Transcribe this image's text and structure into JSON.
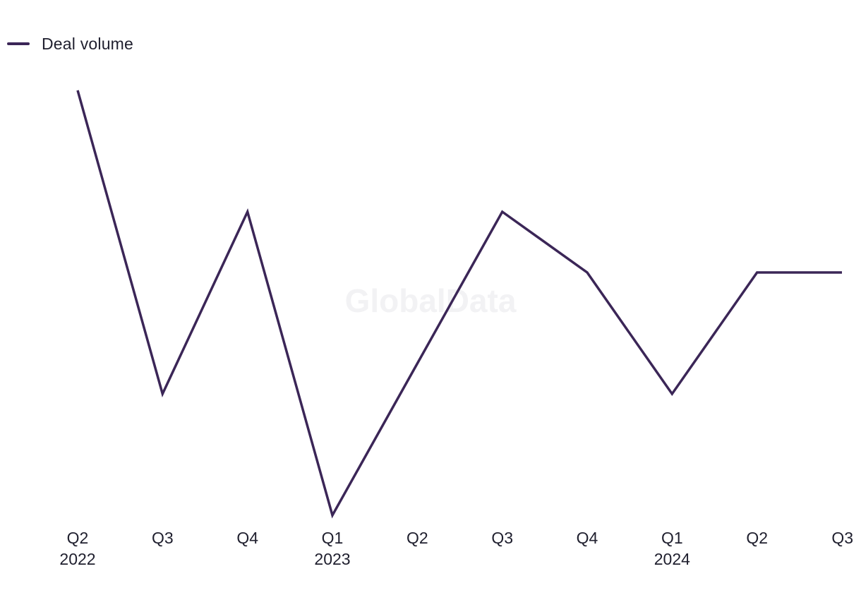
{
  "legend": {
    "items": [
      {
        "label": "Deal volume",
        "color": "#3b2657"
      }
    ]
  },
  "watermark": {
    "text": "GlobalData"
  },
  "chart_data": {
    "type": "line",
    "title": "",
    "xlabel": "",
    "ylabel": "",
    "grid": false,
    "y_axis_visible": false,
    "legend_position": "top-left",
    "categories": [
      [
        "Q2",
        "2022"
      ],
      [
        "Q3",
        ""
      ],
      [
        "Q4",
        ""
      ],
      [
        "Q1",
        "2023"
      ],
      [
        "Q2",
        ""
      ],
      [
        "Q3",
        ""
      ],
      [
        "Q4",
        ""
      ],
      [
        "Q1",
        "2024"
      ],
      [
        "Q2",
        ""
      ],
      [
        "Q3",
        ""
      ]
    ],
    "series": [
      {
        "name": "Deal volume",
        "color": "#3b2657",
        "values": [
          16,
          11,
          14,
          9,
          11.5,
          14,
          13,
          11,
          13,
          13
        ]
      }
    ],
    "ylim": [
      9,
      16
    ]
  }
}
